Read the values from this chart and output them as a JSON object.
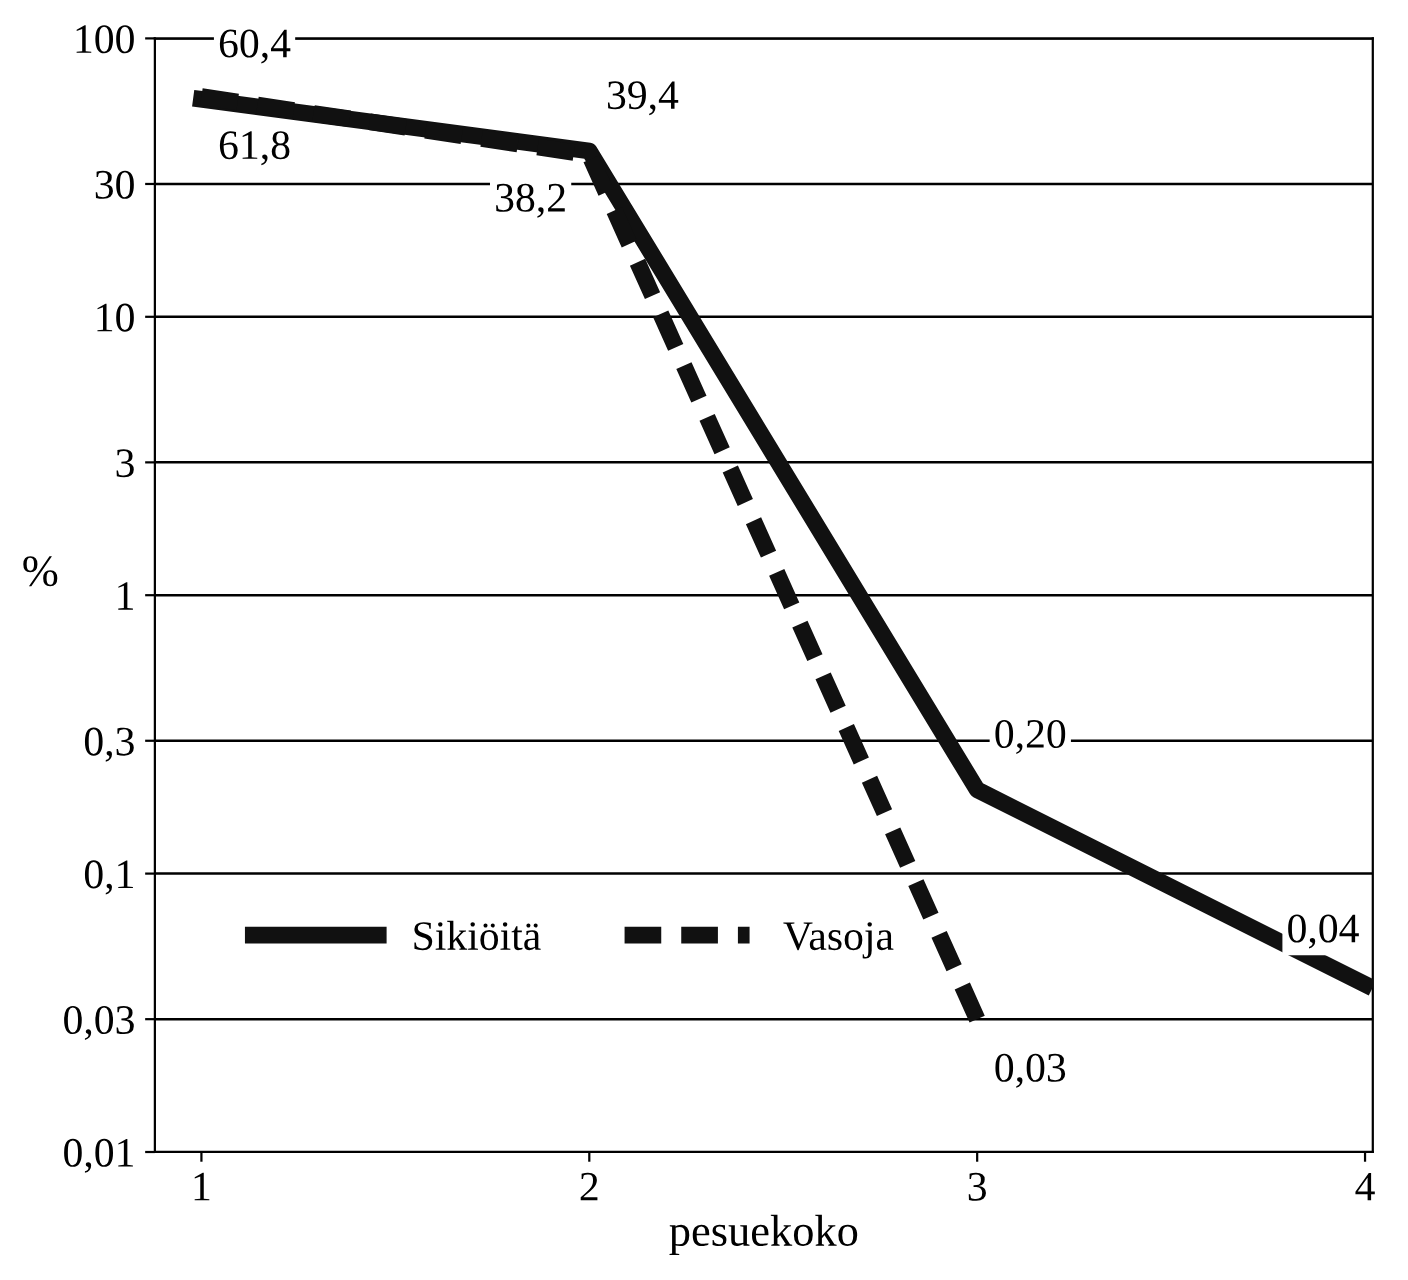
{
  "chart_data": {
    "type": "line",
    "xlabel": "pesuekoko",
    "ylabel": "%",
    "x": [
      1,
      2,
      3,
      4
    ],
    "series": [
      {
        "name": "Sikiöitä",
        "color": "#111111",
        "line_style": "solid",
        "values": [
          60.4,
          39.4,
          0.2,
          0.04
        ],
        "value_labels": [
          "60,4",
          "39,4",
          "0,20",
          "0,04"
        ]
      },
      {
        "name": "Vasoja",
        "color": "#111111",
        "line_style": "dashed",
        "values": [
          61.8,
          38.2,
          0.03,
          null
        ],
        "value_labels": [
          "61,8",
          "38,2",
          "0,03",
          null
        ]
      }
    ],
    "log": "y",
    "xlim": [
      0.88,
      4.02
    ],
    "ylim": [
      0.01,
      100
    ],
    "xticks": [
      1,
      2,
      3,
      4
    ],
    "yticks": [
      {
        "value": 0.01,
        "label": "0,01"
      },
      {
        "value": 0.03,
        "label": "0,03"
      },
      {
        "value": 0.1,
        "label": "0,1"
      },
      {
        "value": 0.3,
        "label": "0,3"
      },
      1,
      3,
      10,
      30,
      100
    ],
    "grid": "y",
    "legend": "bottom left",
    "marker": "none"
  }
}
